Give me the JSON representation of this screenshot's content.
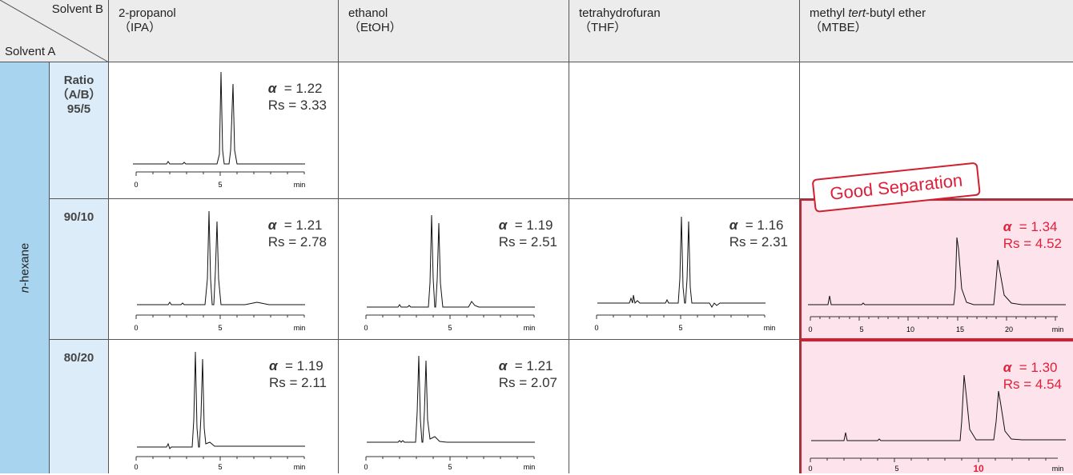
{
  "header": {
    "solvent_b": "Solvent B",
    "solvent_a": "Solvent A",
    "columns": [
      {
        "line1": "2-propanol",
        "line2": "（IPA）"
      },
      {
        "line1": "ethanol",
        "line2": "（EtOH）"
      },
      {
        "line1": "tetrahydrofuran",
        "line2": "（THF）"
      },
      {
        "line1_pre": "methyl ",
        "line1_ital": "tert",
        "line1_post": "-butyl ether",
        "line2": "（MTBE）"
      }
    ]
  },
  "row_header": {
    "prefix": "n",
    "rest": "-hexane"
  },
  "ratios": [
    {
      "l1": "Ratio",
      "l2": "（A/B）",
      "l3": "95/5"
    },
    {
      "l1": "90/10"
    },
    {
      "l1": "80/20"
    }
  ],
  "badge": "Good Separation",
  "alpha_symbol": "α",
  "cells": {
    "r0c0": {
      "alpha": "= 1.22",
      "rs": "Rs = 3.33"
    },
    "r1c0": {
      "alpha": "= 1.21",
      "rs": "Rs = 2.78"
    },
    "r1c1": {
      "alpha": "= 1.19",
      "rs": "Rs = 2.51"
    },
    "r1c2": {
      "alpha": "= 1.16",
      "rs": "Rs = 2.31"
    },
    "r1c3": {
      "alpha": "= 1.34",
      "rs": "Rs = 4.52"
    },
    "r2c0": {
      "alpha": "= 1.19",
      "rs": "Rs = 2.11"
    },
    "r2c1": {
      "alpha": "= 1.21",
      "rs": "Rs = 2.07"
    },
    "r2c3": {
      "alpha": "= 1.30",
      "rs": "Rs = 4.54"
    }
  },
  "axis_ticks": {
    "short": [
      "0",
      "5",
      "min"
    ],
    "long15": [
      "0",
      "5",
      "10",
      "15",
      "20",
      "min"
    ],
    "long10": [
      "0",
      "5",
      "10",
      "min"
    ]
  },
  "colors": {
    "accent_red": "#e0203a",
    "header_gray": "#ececec",
    "solvent_blue": "#a8d4ef",
    "ratio_blue": "#dcecf8",
    "good_pink": "#fde4ec"
  }
}
